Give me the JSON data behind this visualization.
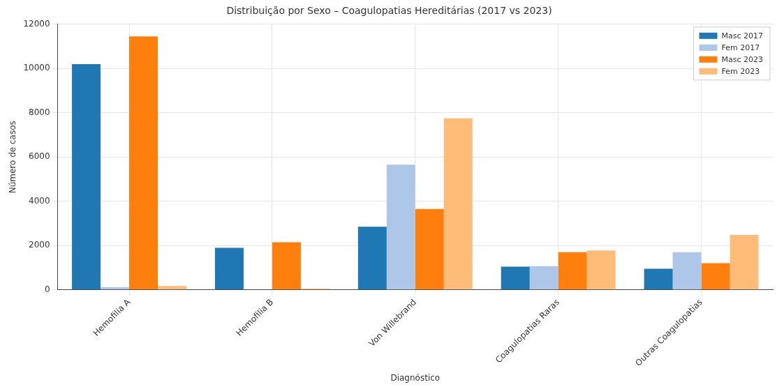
{
  "chart_data": {
    "type": "bar",
    "title": "Distribuição por Sexo – Coagulopatias Hereditárias (2017 vs 2023)",
    "xlabel": "Diagnóstico",
    "ylabel": "Número de casos",
    "categories": [
      "Hemofilia A",
      "Hemofilia B",
      "Von Willebrand",
      "Coagulopatias Raras",
      "Outras Coagulopatias"
    ],
    "series": [
      {
        "name": "Masc 2017",
        "color": "#1f77b4",
        "values": [
          10200,
          1900,
          2850,
          1050,
          950
        ]
      },
      {
        "name": "Fem 2017",
        "color": "#aec7e8",
        "values": [
          120,
          null,
          5650,
          1070,
          1700
        ]
      },
      {
        "name": "Masc 2023",
        "color": "#ff7f0e",
        "values": [
          11450,
          2150,
          3650,
          1700,
          1200
        ]
      },
      {
        "name": "Fem 2023",
        "color": "#ffbb78",
        "values": [
          170,
          50,
          7750,
          1780,
          2480
        ]
      }
    ],
    "ylim": [
      0,
      12000
    ],
    "yticks": [
      0,
      2000,
      4000,
      6000,
      8000,
      10000,
      12000
    ],
    "grid": true,
    "legend": "top right"
  }
}
